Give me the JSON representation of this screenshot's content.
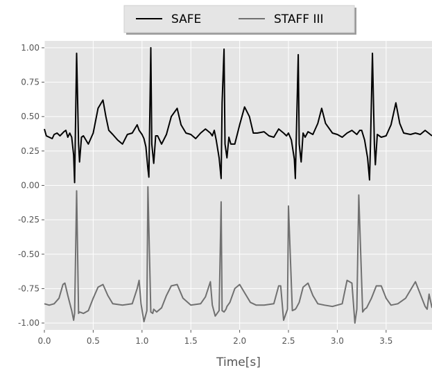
{
  "chart_data": {
    "type": "line",
    "title": "",
    "xlabel": "Time[s]",
    "ylabel": "",
    "xlim": [
      0.0,
      3.97
    ],
    "ylim": [
      -1.05,
      1.05
    ],
    "grid": true,
    "legend_position": "top-center",
    "x_ticks": [
      0.0,
      0.5,
      1.0,
      1.5,
      2.0,
      2.5,
      3.0,
      3.5
    ],
    "x_tick_labels": [
      "0.0",
      "0.5",
      "1.0",
      "1.5",
      "2.0",
      "2.5",
      "3.0",
      "3.5"
    ],
    "y_ticks": [
      1.0,
      0.75,
      0.5,
      0.25,
      0.0,
      -0.25,
      -0.5,
      -0.75,
      -1.0
    ],
    "y_tick_labels": [
      "1.00",
      "0.75",
      "0.50",
      "0.25",
      "0.00",
      "-0.25",
      "-0.50",
      "-0.75",
      "-1.00"
    ],
    "beats_s": [
      0.33,
      1.09,
      1.84,
      2.6,
      3.36
    ],
    "series": [
      {
        "name": "SAFE",
        "color": "#000000",
        "baseline": 0.37,
        "x": [
          0.0,
          0.02,
          0.05,
          0.08,
          0.1,
          0.13,
          0.16,
          0.2,
          0.22,
          0.24,
          0.26,
          0.28,
          0.3,
          0.31,
          0.33,
          0.35,
          0.36,
          0.38,
          0.4,
          0.45,
          0.5,
          0.55,
          0.6,
          0.63,
          0.66,
          0.7,
          0.75,
          0.8,
          0.85,
          0.9,
          0.95,
          0.97,
          1.0,
          1.02,
          1.04,
          1.06,
          1.07,
          1.09,
          1.1,
          1.12,
          1.14,
          1.16,
          1.2,
          1.25,
          1.3,
          1.36,
          1.4,
          1.45,
          1.5,
          1.55,
          1.6,
          1.65,
          1.7,
          1.72,
          1.74,
          1.76,
          1.79,
          1.81,
          1.82,
          1.84,
          1.85,
          1.87,
          1.89,
          1.91,
          1.95,
          2.0,
          2.05,
          2.1,
          2.14,
          2.18,
          2.25,
          2.3,
          2.35,
          2.4,
          2.45,
          2.48,
          2.5,
          2.53,
          2.56,
          2.57,
          2.6,
          2.61,
          2.63,
          2.65,
          2.67,
          2.7,
          2.75,
          2.8,
          2.84,
          2.88,
          2.95,
          3.0,
          3.05,
          3.1,
          3.15,
          3.2,
          3.23,
          3.25,
          3.28,
          3.31,
          3.33,
          3.34,
          3.36,
          3.38,
          3.39,
          3.41,
          3.45,
          3.5,
          3.55,
          3.6,
          3.64,
          3.68,
          3.75,
          3.8,
          3.85,
          3.9,
          3.97
        ],
        "y": [
          0.41,
          0.36,
          0.35,
          0.34,
          0.37,
          0.38,
          0.36,
          0.39,
          0.4,
          0.35,
          0.38,
          0.35,
          0.22,
          0.02,
          0.96,
          0.3,
          0.17,
          0.35,
          0.36,
          0.3,
          0.38,
          0.56,
          0.62,
          0.5,
          0.4,
          0.37,
          0.33,
          0.3,
          0.37,
          0.38,
          0.44,
          0.4,
          0.37,
          0.34,
          0.28,
          0.12,
          0.06,
          1.0,
          0.3,
          0.16,
          0.36,
          0.36,
          0.3,
          0.37,
          0.5,
          0.56,
          0.44,
          0.38,
          0.37,
          0.34,
          0.38,
          0.41,
          0.38,
          0.36,
          0.4,
          0.33,
          0.2,
          0.05,
          0.6,
          0.99,
          0.3,
          0.2,
          0.35,
          0.3,
          0.3,
          0.44,
          0.57,
          0.5,
          0.38,
          0.38,
          0.39,
          0.36,
          0.35,
          0.41,
          0.38,
          0.36,
          0.38,
          0.33,
          0.19,
          0.05,
          0.95,
          0.3,
          0.17,
          0.38,
          0.35,
          0.39,
          0.37,
          0.45,
          0.56,
          0.45,
          0.38,
          0.37,
          0.35,
          0.38,
          0.4,
          0.37,
          0.4,
          0.4,
          0.33,
          0.2,
          0.04,
          0.3,
          0.96,
          0.3,
          0.15,
          0.37,
          0.35,
          0.36,
          0.44,
          0.6,
          0.45,
          0.38,
          0.37,
          0.38,
          0.37,
          0.4,
          0.36
        ]
      },
      {
        "name": "STAFF III",
        "color": "#707070",
        "baseline": -0.87,
        "x": [
          0.0,
          0.05,
          0.1,
          0.15,
          0.19,
          0.21,
          0.24,
          0.28,
          0.3,
          0.31,
          0.33,
          0.35,
          0.36,
          0.4,
          0.45,
          0.5,
          0.55,
          0.6,
          0.65,
          0.7,
          0.8,
          0.9,
          0.95,
          0.97,
          0.99,
          1.02,
          1.05,
          1.06,
          1.09,
          1.11,
          1.12,
          1.15,
          1.2,
          1.25,
          1.3,
          1.36,
          1.42,
          1.5,
          1.6,
          1.65,
          1.7,
          1.72,
          1.75,
          1.79,
          1.81,
          1.82,
          1.84,
          1.86,
          1.87,
          1.9,
          1.95,
          2.0,
          2.05,
          2.11,
          2.17,
          2.25,
          2.35,
          2.4,
          2.42,
          2.45,
          2.49,
          2.5,
          2.54,
          2.57,
          2.58,
          2.61,
          2.65,
          2.7,
          2.75,
          2.8,
          2.87,
          2.95,
          3.05,
          3.1,
          3.15,
          3.18,
          3.2,
          3.22,
          3.26,
          3.28,
          3.3,
          3.35,
          3.4,
          3.45,
          3.5,
          3.55,
          3.62,
          3.7,
          3.8,
          3.9,
          3.92,
          3.94,
          3.97
        ],
        "y": [
          -0.86,
          -0.87,
          -0.86,
          -0.82,
          -0.72,
          -0.71,
          -0.8,
          -0.91,
          -0.98,
          -0.93,
          -0.04,
          -0.93,
          -0.92,
          -0.93,
          -0.91,
          -0.82,
          -0.74,
          -0.72,
          -0.8,
          -0.86,
          -0.87,
          -0.86,
          -0.75,
          -0.69,
          -0.86,
          -0.99,
          -0.91,
          -0.01,
          -0.92,
          -0.93,
          -0.9,
          -0.92,
          -0.89,
          -0.8,
          -0.73,
          -0.72,
          -0.82,
          -0.87,
          -0.86,
          -0.81,
          -0.7,
          -0.87,
          -0.95,
          -0.91,
          -0.12,
          -0.91,
          -0.92,
          -0.9,
          -0.88,
          -0.85,
          -0.75,
          -0.72,
          -0.78,
          -0.85,
          -0.87,
          -0.87,
          -0.86,
          -0.73,
          -0.73,
          -0.98,
          -0.9,
          -0.15,
          -0.91,
          -0.9,
          -0.89,
          -0.85,
          -0.74,
          -0.71,
          -0.8,
          -0.86,
          -0.87,
          -0.88,
          -0.86,
          -0.69,
          -0.71,
          -1.0,
          -0.9,
          -0.07,
          -0.92,
          -0.9,
          -0.89,
          -0.82,
          -0.73,
          -0.73,
          -0.82,
          -0.87,
          -0.86,
          -0.82,
          -0.7,
          -0.88,
          -0.9,
          -0.79,
          -0.89
        ]
      }
    ]
  }
}
